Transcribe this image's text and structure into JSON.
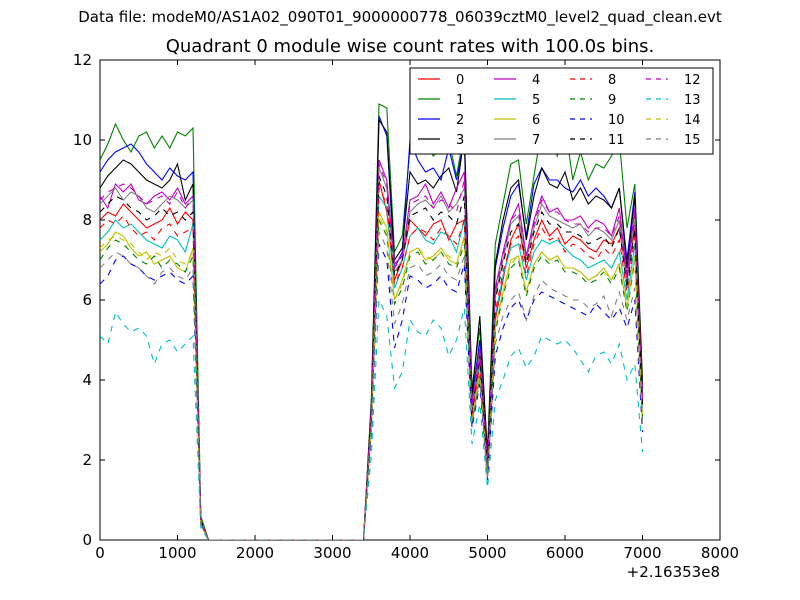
{
  "header": {
    "file_title": "Data file: modeM0/AS1A02_090T01_9000000778_06039cztM0_level2_quad_clean.evt",
    "plot_title": "Quadrant 0 module wise count rates with 100.0s bins."
  },
  "chart_data": {
    "type": "line",
    "title": "Quadrant 0 module wise count rates with 100.0s bins.",
    "xlabel": "",
    "ylabel": "",
    "xlim": [
      0,
      8000
    ],
    "ylim": [
      0,
      12
    ],
    "x_offset_label": "+2.16353e8",
    "xticks": [
      0,
      1000,
      2000,
      3000,
      4000,
      5000,
      6000,
      7000,
      8000
    ],
    "yticks": [
      0,
      2,
      4,
      6,
      8,
      10,
      12
    ],
    "grid": false,
    "legend_position": "top-right",
    "legend_columns": 4,
    "x": [
      0,
      100,
      200,
      300,
      400,
      500,
      600,
      700,
      800,
      900,
      1000,
      1100,
      1200,
      1300,
      1400,
      1500,
      3300,
      3400,
      3500,
      3600,
      3700,
      3800,
      3900,
      4000,
      4100,
      4200,
      4300,
      4400,
      4500,
      4600,
      4700,
      4800,
      4900,
      5000,
      5100,
      5200,
      5300,
      5400,
      5500,
      5600,
      5700,
      5800,
      5900,
      6000,
      6100,
      6200,
      6300,
      6400,
      6500,
      6600,
      6700,
      6800,
      6900,
      7000
    ],
    "series": [
      {
        "name": "0",
        "color": "#ff0000",
        "dash": "solid",
        "values": [
          8.0,
          8.2,
          8.1,
          8.4,
          8.2,
          8.0,
          7.8,
          7.9,
          8.0,
          8.3,
          7.9,
          8.2,
          8.0,
          0.5,
          0.0,
          0.0,
          0.0,
          0.0,
          3.0,
          9.0,
          8.2,
          6.5,
          7.0,
          8.0,
          7.8,
          7.6,
          7.9,
          8.0,
          7.5,
          7.9,
          8.0,
          3.2,
          4.5,
          1.8,
          5.5,
          6.5,
          7.5,
          7.9,
          6.8,
          7.5,
          8.0,
          7.6,
          7.8,
          7.4,
          7.6,
          7.5,
          7.3,
          7.2,
          7.5,
          7.4,
          7.8,
          6.5,
          7.8,
          3.5
        ]
      },
      {
        "name": "1",
        "color": "#008000",
        "dash": "solid",
        "values": [
          9.5,
          9.9,
          10.4,
          10.0,
          9.7,
          10.1,
          10.2,
          9.8,
          10.1,
          9.8,
          10.2,
          10.1,
          10.3,
          0.6,
          0.0,
          0.0,
          0.0,
          0.0,
          3.5,
          10.9,
          10.8,
          7.2,
          7.6,
          9.8,
          10.4,
          9.9,
          9.6,
          9.8,
          10.0,
          9.1,
          10.2,
          3.8,
          5.3,
          2.2,
          7.4,
          8.4,
          9.4,
          9.5,
          7.9,
          9.1,
          10.3,
          10.1,
          9.6,
          10.4,
          9.0,
          9.7,
          9.0,
          9.4,
          9.3,
          9.6,
          10.0,
          7.8,
          8.9,
          4.0
        ]
      },
      {
        "name": "2",
        "color": "#0000ff",
        "dash": "solid",
        "values": [
          9.2,
          9.5,
          9.7,
          9.8,
          9.9,
          9.7,
          9.4,
          9.2,
          9.0,
          9.3,
          9.1,
          9.0,
          9.2,
          0.5,
          0.0,
          0.0,
          0.0,
          0.0,
          3.3,
          10.6,
          10.1,
          6.8,
          7.2,
          10.0,
          9.5,
          9.2,
          9.3,
          9.0,
          9.8,
          9.0,
          10.0,
          3.5,
          5.0,
          2.0,
          6.8,
          7.8,
          8.6,
          8.9,
          7.6,
          8.9,
          9.3,
          9.0,
          9.0,
          8.8,
          8.7,
          9.0,
          8.6,
          8.8,
          8.6,
          8.3,
          8.8,
          7.0,
          8.7,
          3.8
        ]
      },
      {
        "name": "3",
        "color": "#000000",
        "dash": "solid",
        "values": [
          8.8,
          9.1,
          9.3,
          9.5,
          9.4,
          9.2,
          9.0,
          8.9,
          8.8,
          9.0,
          9.4,
          8.5,
          8.9,
          0.5,
          0.0,
          0.0,
          0.0,
          0.0,
          3.4,
          10.5,
          10.2,
          7.0,
          7.3,
          9.2,
          8.9,
          9.0,
          8.8,
          9.1,
          9.3,
          8.7,
          10.1,
          3.6,
          5.6,
          2.1,
          6.9,
          8.0,
          8.8,
          9.0,
          7.5,
          8.6,
          9.3,
          8.9,
          8.8,
          9.2,
          8.5,
          8.8,
          8.4,
          8.6,
          8.5,
          8.3,
          8.8,
          6.8,
          8.6,
          3.9
        ]
      },
      {
        "name": "4",
        "color": "#bf00bf",
        "dash": "solid",
        "values": [
          8.6,
          8.3,
          8.9,
          8.7,
          8.9,
          8.5,
          8.4,
          8.6,
          8.7,
          8.5,
          8.8,
          8.4,
          8.6,
          0.5,
          0.0,
          0.0,
          0.0,
          0.0,
          3.2,
          9.5,
          9.0,
          6.9,
          7.1,
          8.5,
          8.6,
          8.9,
          8.4,
          8.7,
          8.3,
          8.8,
          9.2,
          3.4,
          4.8,
          1.9,
          6.3,
          7.2,
          8.0,
          8.4,
          7.1,
          8.0,
          8.6,
          8.2,
          8.3,
          8.0,
          8.0,
          8.1,
          7.8,
          8.0,
          7.9,
          7.6,
          8.3,
          6.6,
          8.3,
          3.6
        ]
      },
      {
        "name": "5",
        "color": "#00bfbf",
        "dash": "solid",
        "values": [
          7.5,
          7.7,
          8.0,
          7.8,
          7.9,
          7.7,
          7.5,
          7.4,
          7.3,
          7.6,
          7.5,
          7.2,
          7.9,
          0.4,
          0.0,
          0.0,
          0.0,
          0.0,
          3.0,
          8.6,
          8.3,
          6.3,
          6.8,
          7.6,
          7.8,
          7.5,
          7.4,
          7.7,
          7.6,
          7.2,
          8.0,
          3.1,
          4.4,
          1.7,
          5.6,
          6.6,
          7.3,
          7.4,
          6.5,
          7.2,
          7.5,
          7.4,
          7.5,
          7.3,
          7.1,
          7.0,
          6.8,
          6.9,
          7.0,
          6.8,
          7.2,
          6.0,
          7.4,
          3.3
        ]
      },
      {
        "name": "6",
        "color": "#bfbf00",
        "dash": "solid",
        "values": [
          7.2,
          7.4,
          7.7,
          7.6,
          7.3,
          7.1,
          7.2,
          6.9,
          7.0,
          7.1,
          6.8,
          6.7,
          7.3,
          0.4,
          0.0,
          0.0,
          0.0,
          0.0,
          2.8,
          8.2,
          7.8,
          6.0,
          6.5,
          7.2,
          7.3,
          7.0,
          7.1,
          7.3,
          7.0,
          6.9,
          7.6,
          3.0,
          4.2,
          1.6,
          5.3,
          6.2,
          7.0,
          7.1,
          6.2,
          6.9,
          7.2,
          7.0,
          7.1,
          6.8,
          6.8,
          6.7,
          6.5,
          6.6,
          6.8,
          6.5,
          6.9,
          5.8,
          7.1,
          3.1
        ]
      },
      {
        "name": "7",
        "color": "#808080",
        "dash": "solid",
        "values": [
          8.4,
          8.6,
          8.8,
          8.5,
          8.7,
          8.6,
          8.3,
          8.2,
          8.4,
          8.6,
          8.5,
          8.3,
          8.5,
          0.5,
          0.0,
          0.0,
          0.0,
          0.0,
          3.1,
          9.3,
          8.8,
          6.7,
          7.0,
          8.2,
          8.4,
          8.5,
          8.3,
          8.6,
          8.2,
          8.4,
          8.8,
          3.3,
          4.7,
          1.8,
          6.1,
          7.0,
          7.9,
          8.1,
          7.0,
          7.8,
          8.4,
          8.1,
          8.0,
          7.9,
          7.8,
          7.9,
          7.6,
          7.8,
          7.7,
          7.5,
          8.0,
          6.4,
          8.0,
          3.5
        ]
      },
      {
        "name": "8",
        "color": "#ff0000",
        "dash": "dashed",
        "values": [
          7.8,
          8.0,
          7.9,
          8.1,
          7.8,
          7.6,
          7.7,
          7.5,
          7.8,
          7.9,
          7.6,
          7.7,
          7.8,
          0.4,
          0.0,
          0.0,
          0.0,
          0.0,
          2.9,
          8.8,
          8.4,
          6.4,
          6.8,
          7.6,
          7.8,
          7.7,
          7.5,
          7.8,
          7.6,
          7.4,
          8.0,
          3.1,
          4.4,
          1.7,
          5.7,
          6.7,
          7.4,
          7.6,
          6.6,
          7.4,
          7.8,
          7.5,
          7.6,
          7.2,
          7.4,
          7.3,
          7.1,
          7.0,
          7.3,
          7.1,
          7.5,
          6.2,
          7.6,
          3.4
        ]
      },
      {
        "name": "9",
        "color": "#008000",
        "dash": "dashed",
        "values": [
          7.0,
          7.3,
          7.5,
          7.4,
          7.2,
          7.0,
          6.9,
          7.1,
          6.8,
          7.0,
          6.9,
          6.7,
          7.1,
          0.4,
          0.0,
          0.0,
          0.0,
          0.0,
          2.8,
          8.0,
          7.6,
          5.9,
          6.3,
          7.1,
          7.2,
          6.9,
          7.0,
          7.2,
          6.9,
          6.8,
          7.4,
          2.9,
          4.1,
          1.6,
          5.2,
          6.1,
          6.8,
          7.0,
          6.1,
          6.8,
          7.1,
          6.9,
          7.0,
          6.7,
          6.7,
          6.6,
          6.4,
          6.5,
          6.7,
          6.4,
          6.8,
          5.7,
          7.0,
          3.0
        ]
      },
      {
        "name": "10",
        "color": "#0000ff",
        "dash": "dashed",
        "values": [
          6.4,
          6.6,
          7.0,
          7.1,
          6.9,
          6.8,
          6.6,
          6.5,
          6.6,
          6.7,
          6.5,
          6.4,
          6.6,
          0.4,
          0.0,
          0.0,
          0.0,
          0.0,
          2.6,
          7.4,
          7.0,
          4.8,
          5.5,
          6.6,
          6.5,
          6.3,
          6.4,
          6.6,
          6.3,
          6.2,
          6.9,
          2.8,
          3.9,
          1.5,
          4.6,
          5.3,
          5.8,
          6.0,
          5.5,
          6.0,
          6.2,
          6.1,
          6.0,
          5.9,
          5.8,
          5.7,
          5.6,
          5.9,
          5.7,
          5.5,
          5.8,
          5.3,
          6.0,
          2.7
        ]
      },
      {
        "name": "11",
        "color": "#000000",
        "dash": "dashed",
        "values": [
          8.2,
          8.4,
          8.6,
          8.5,
          8.3,
          8.2,
          8.0,
          8.1,
          8.3,
          8.1,
          8.2,
          8.0,
          8.2,
          0.5,
          0.0,
          0.0,
          0.0,
          0.0,
          3.1,
          9.1,
          8.6,
          6.6,
          7.0,
          8.1,
          8.2,
          8.3,
          8.0,
          8.2,
          8.1,
          7.9,
          8.6,
          3.2,
          4.6,
          1.8,
          6.0,
          6.9,
          7.7,
          7.9,
          6.9,
          7.7,
          8.2,
          7.9,
          7.9,
          7.7,
          7.7,
          7.6,
          7.4,
          7.5,
          7.6,
          7.3,
          7.8,
          6.3,
          7.8,
          3.4
        ]
      },
      {
        "name": "12",
        "color": "#bf00bf",
        "dash": "dashed",
        "values": [
          8.5,
          8.7,
          8.8,
          8.9,
          8.8,
          8.6,
          8.4,
          8.5,
          8.6,
          8.4,
          8.7,
          8.3,
          8.6,
          0.5,
          0.0,
          0.0,
          0.0,
          0.0,
          3.2,
          9.4,
          8.9,
          6.8,
          7.1,
          8.4,
          8.5,
          8.6,
          8.3,
          8.5,
          8.4,
          8.2,
          9.0,
          3.3,
          4.7,
          1.8,
          6.2,
          7.1,
          8.0,
          8.2,
          7.1,
          7.9,
          8.5,
          8.2,
          8.2,
          8.0,
          7.9,
          7.9,
          7.7,
          7.8,
          7.8,
          7.6,
          8.1,
          6.5,
          8.1,
          3.5
        ]
      },
      {
        "name": "13",
        "color": "#00bfbf",
        "dash": "dashed",
        "values": [
          5.1,
          4.9,
          5.7,
          5.4,
          5.2,
          5.3,
          5.1,
          4.4,
          4.9,
          5.0,
          4.7,
          4.9,
          5.1,
          0.3,
          0.0,
          0.0,
          0.0,
          0.0,
          2.1,
          6.0,
          5.6,
          3.8,
          4.2,
          5.5,
          5.2,
          5.1,
          5.5,
          5.3,
          4.6,
          5.0,
          5.8,
          2.4,
          3.4,
          1.3,
          3.5,
          4.0,
          4.6,
          4.8,
          4.3,
          4.6,
          5.1,
          5.0,
          4.9,
          5.0,
          4.8,
          4.5,
          4.2,
          4.6,
          4.7,
          4.4,
          4.9,
          4.0,
          4.4,
          2.2
        ]
      },
      {
        "name": "14",
        "color": "#bfbf00",
        "dash": "dashed",
        "values": [
          7.3,
          7.5,
          7.6,
          7.5,
          7.4,
          7.2,
          7.0,
          7.2,
          7.1,
          7.3,
          7.0,
          6.9,
          7.2,
          0.4,
          0.0,
          0.0,
          0.0,
          0.0,
          2.8,
          8.1,
          7.7,
          6.0,
          6.4,
          7.2,
          7.3,
          7.1,
          7.0,
          7.2,
          7.1,
          6.9,
          7.5,
          3.0,
          4.2,
          1.6,
          5.3,
          6.2,
          6.9,
          7.1,
          6.2,
          6.9,
          7.2,
          7.0,
          7.1,
          6.8,
          6.8,
          6.7,
          6.5,
          6.6,
          6.7,
          6.5,
          6.9,
          5.8,
          7.1,
          3.1
        ]
      },
      {
        "name": "15",
        "color": "#808080",
        "dash": "dashed",
        "values": [
          6.8,
          7.0,
          7.2,
          7.1,
          6.9,
          6.8,
          6.6,
          6.4,
          6.7,
          6.8,
          6.6,
          6.5,
          6.8,
          0.4,
          0.0,
          0.0,
          0.0,
          0.0,
          2.7,
          7.7,
          7.3,
          5.4,
          5.9,
          6.8,
          6.9,
          6.6,
          6.7,
          6.9,
          6.6,
          6.5,
          7.1,
          2.9,
          4.0,
          1.5,
          4.9,
          5.6,
          6.0,
          6.2,
          5.5,
          6.1,
          6.5,
          6.3,
          6.2,
          6.1,
          6.0,
          6.0,
          5.8,
          5.9,
          6.1,
          5.6,
          6.2,
          5.5,
          6.3,
          2.9
        ]
      }
    ]
  }
}
